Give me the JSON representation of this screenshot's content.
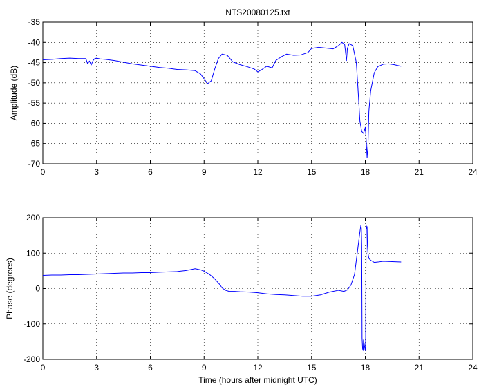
{
  "figure": {
    "title": "NTS20080125.txt",
    "colors": {
      "series": "#0000ff",
      "axes": "#000000",
      "background": "#ffffff"
    }
  },
  "chart_data": [
    {
      "type": "line",
      "title": "NTS20080125.txt",
      "xlabel": "",
      "ylabel": "Amplitude (dB)",
      "xlim": [
        0,
        24
      ],
      "ylim": [
        -70,
        -35
      ],
      "xticks": [
        0,
        3,
        6,
        9,
        12,
        15,
        18,
        21,
        24
      ],
      "yticks": [
        -70,
        -65,
        -60,
        -55,
        -50,
        -45,
        -40,
        -35
      ],
      "grid": true,
      "series": [
        {
          "color": "#0000ff",
          "x": [
            0,
            0.5,
            1,
            1.5,
            2,
            2.4,
            2.5,
            2.6,
            2.7,
            2.8,
            2.9,
            3.0,
            3.2,
            3.5,
            4,
            4.5,
            5,
            5.5,
            6,
            6.5,
            7,
            7.5,
            8,
            8.5,
            8.8,
            9.0,
            9.2,
            9.4,
            9.6,
            9.8,
            10.0,
            10.3,
            10.6,
            11.0,
            11.4,
            11.8,
            12.0,
            12.2,
            12.5,
            12.8,
            13.0,
            13.3,
            13.6,
            14.0,
            14.4,
            14.8,
            15.0,
            15.4,
            15.8,
            16.2,
            16.5,
            16.7,
            16.85,
            16.95,
            17.0,
            17.1,
            17.3,
            17.5,
            17.6,
            17.7,
            17.8,
            17.9,
            18.0,
            18.05,
            18.1,
            18.15,
            18.2,
            18.3,
            18.5,
            18.7,
            19.0,
            19.3,
            19.6,
            20.0
          ],
          "y": [
            -44.3,
            -44.2,
            -44.0,
            -43.9,
            -44.0,
            -44.0,
            -45.3,
            -44.6,
            -45.6,
            -44.5,
            -44.0,
            -43.9,
            -44.1,
            -44.2,
            -44.5,
            -44.9,
            -45.3,
            -45.6,
            -45.9,
            -46.2,
            -46.4,
            -46.7,
            -46.8,
            -47.0,
            -47.8,
            -49.0,
            -50.2,
            -49.5,
            -46.5,
            -44.0,
            -42.9,
            -43.2,
            -44.8,
            -45.5,
            -46.0,
            -46.6,
            -47.3,
            -46.8,
            -45.9,
            -46.3,
            -44.5,
            -43.6,
            -42.9,
            -43.2,
            -43.1,
            -42.5,
            -41.5,
            -41.2,
            -41.4,
            -41.6,
            -40.8,
            -40.0,
            -40.6,
            -44.5,
            -41.5,
            -40.3,
            -40.8,
            -45.0,
            -52.0,
            -59.5,
            -62.0,
            -62.5,
            -61.0,
            -64.0,
            -68.5,
            -65.5,
            -57.0,
            -52.0,
            -47.5,
            -46.0,
            -45.4,
            -45.3,
            -45.5,
            -45.9
          ]
        }
      ]
    },
    {
      "type": "line",
      "title": "",
      "xlabel": "Time (hours after midnight UTC)",
      "ylabel": "Phase (degrees)",
      "xlim": [
        0,
        24
      ],
      "ylim": [
        -200,
        200
      ],
      "xticks": [
        0,
        3,
        6,
        9,
        12,
        15,
        18,
        21,
        24
      ],
      "yticks": [
        -200,
        -100,
        0,
        100,
        200
      ],
      "grid": true,
      "series": [
        {
          "color": "#0000ff",
          "x": [
            0,
            0.5,
            1,
            1.5,
            2,
            2.5,
            3,
            3.5,
            4,
            4.5,
            5,
            5.5,
            6,
            6.5,
            7,
            7.5,
            8,
            8.5,
            8.8,
            9.0,
            9.3,
            9.6,
            9.9,
            10.0,
            10.2,
            10.4,
            10.7,
            11.0,
            11.5,
            12.0,
            12.5,
            13.0,
            13.5,
            14.0,
            14.5,
            15.0,
            15.5,
            16.0,
            16.5,
            16.8,
            17.0,
            17.2,
            17.4,
            17.55,
            17.7,
            17.75,
            17.78,
            17.8,
            17.82,
            17.85,
            17.88,
            17.9,
            17.95,
            18.0,
            18.02,
            18.05,
            18.08,
            18.1,
            18.12,
            18.15,
            18.2,
            18.3,
            18.5,
            18.7,
            19.0,
            19.5,
            20.0
          ],
          "y": [
            37,
            38,
            38,
            39,
            39,
            40,
            41,
            42,
            43,
            44,
            44,
            45,
            45,
            46,
            47,
            48,
            51,
            56,
            53,
            49,
            40,
            27,
            10,
            2,
            -5,
            -8,
            -8,
            -9,
            -10,
            -12,
            -15,
            -17,
            -18,
            -20,
            -22,
            -22,
            -18,
            -10,
            -5,
            -8,
            -4,
            10,
            40,
            100,
            160,
            178,
            170,
            120,
            -140,
            -170,
            -175,
            -145,
            -160,
            -175,
            -150,
            178,
            170,
            175,
            120,
            100,
            85,
            80,
            74,
            75,
            77,
            76,
            75
          ]
        }
      ]
    }
  ]
}
